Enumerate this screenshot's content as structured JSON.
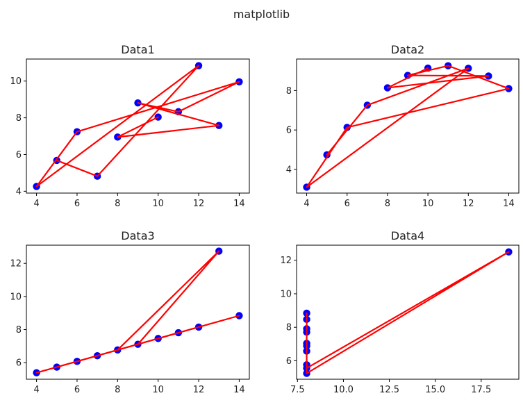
{
  "suptitle": "matplotlib",
  "style": {
    "line_color": "#ff0000",
    "marker_color": "#0000ff"
  },
  "chart_data": [
    {
      "type": "line",
      "title": "Data1",
      "x": [
        10,
        8,
        13,
        9,
        11,
        14,
        6,
        4,
        12,
        7,
        5
      ],
      "y": [
        8.04,
        6.95,
        7.58,
        8.81,
        8.33,
        9.96,
        7.24,
        4.26,
        10.84,
        4.82,
        5.68
      ],
      "xlim": [
        3.5,
        14.5
      ],
      "ylim": [
        3.9,
        11.2
      ],
      "xticks": [
        4,
        6,
        8,
        10,
        12,
        14
      ],
      "xtick_labels": [
        "4",
        "6",
        "8",
        "10",
        "12",
        "14"
      ],
      "yticks": [
        4,
        6,
        8,
        10
      ],
      "ytick_labels": [
        "4",
        "6",
        "8",
        "10"
      ]
    },
    {
      "type": "line",
      "title": "Data2",
      "x": [
        10,
        8,
        13,
        9,
        11,
        14,
        6,
        4,
        12,
        7,
        5
      ],
      "y": [
        9.14,
        8.14,
        8.74,
        8.77,
        9.26,
        8.1,
        6.13,
        3.1,
        9.13,
        7.26,
        4.74
      ],
      "xlim": [
        3.5,
        14.5
      ],
      "ylim": [
        2.8,
        9.6
      ],
      "xticks": [
        4,
        6,
        8,
        10,
        12,
        14
      ],
      "xtick_labels": [
        "4",
        "6",
        "8",
        "10",
        "12",
        "14"
      ],
      "yticks": [
        4,
        6,
        8
      ],
      "ytick_labels": [
        "4",
        "6",
        "8"
      ]
    },
    {
      "type": "line",
      "title": "Data3",
      "x": [
        10,
        8,
        13,
        9,
        11,
        14,
        6,
        4,
        12,
        7,
        5
      ],
      "y": [
        7.46,
        6.77,
        12.74,
        7.11,
        7.81,
        8.84,
        6.08,
        5.39,
        8.15,
        6.42,
        5.73
      ],
      "xlim": [
        3.5,
        14.5
      ],
      "ylim": [
        5.0,
        13.1
      ],
      "xticks": [
        4,
        6,
        8,
        10,
        12,
        14
      ],
      "xtick_labels": [
        "4",
        "6",
        "8",
        "10",
        "12",
        "14"
      ],
      "yticks": [
        6,
        8,
        10,
        12
      ],
      "ytick_labels": [
        "6",
        "8",
        "10",
        "12"
      ]
    },
    {
      "type": "line",
      "title": "Data4",
      "x": [
        8,
        8,
        8,
        8,
        8,
        8,
        8,
        19,
        8,
        8,
        8
      ],
      "y": [
        6.58,
        5.76,
        7.71,
        8.84,
        8.47,
        7.04,
        5.25,
        12.5,
        5.56,
        7.91,
        6.89
      ],
      "xlim": [
        7.45,
        19.55
      ],
      "ylim": [
        4.9,
        12.9
      ],
      "xticks": [
        7.5,
        10,
        12.5,
        15,
        17.5
      ],
      "xtick_labels": [
        "7.5",
        "10.0",
        "12.5",
        "15.0",
        "17.5"
      ],
      "yticks": [
        6,
        8,
        10,
        12
      ],
      "ytick_labels": [
        "6",
        "8",
        "10",
        "12"
      ]
    }
  ]
}
